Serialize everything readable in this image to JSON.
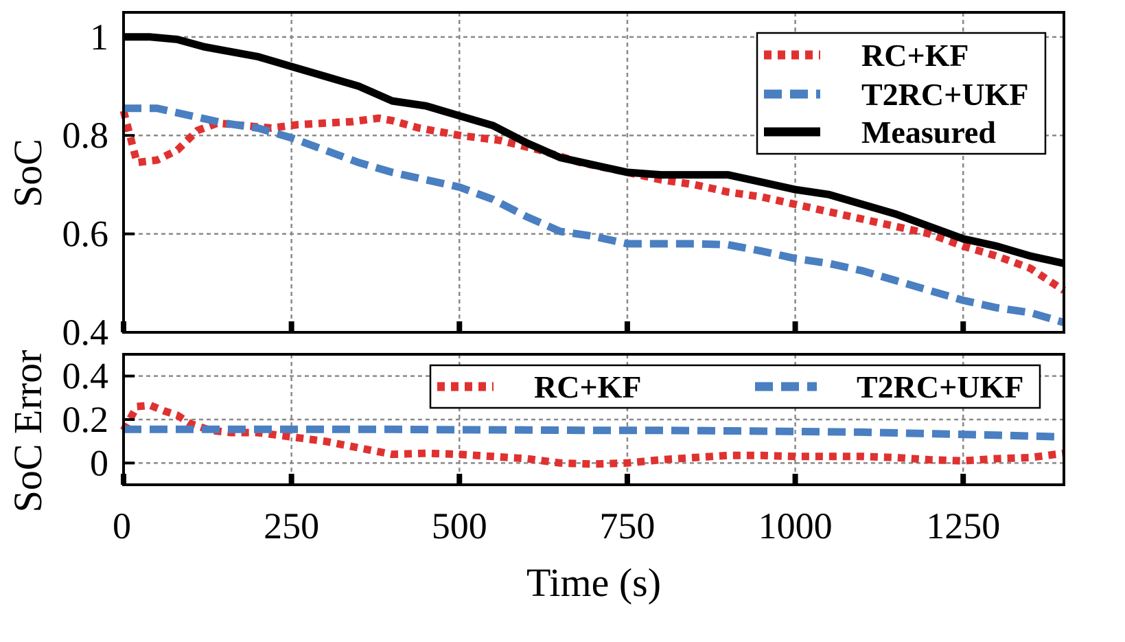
{
  "chart_data": [
    {
      "type": "line",
      "ylabel": "SoC",
      "xlim": [
        0,
        1400
      ],
      "ylim": [
        0.4,
        1.05
      ],
      "yticks": [
        0.4,
        0.6,
        0.8,
        1
      ],
      "ytick_labels": [
        "0.4",
        "0.6",
        "0.8",
        "1"
      ],
      "xticks": [
        0,
        250,
        500,
        750,
        1000,
        1250
      ],
      "grid": true,
      "legend": {
        "position": "top-right",
        "layout": "vertical"
      },
      "series": [
        {
          "name": "RC+KF",
          "color": "#e03131",
          "style": "dotted",
          "x": [
            0,
            20,
            50,
            80,
            110,
            140,
            180,
            220,
            260,
            300,
            340,
            380,
            400,
            440,
            500,
            560,
            620,
            680,
            750,
            800,
            850,
            900,
            950,
            1000,
            1050,
            1100,
            1150,
            1200,
            1250,
            1300,
            1350,
            1400
          ],
          "y": [
            0.85,
            0.745,
            0.75,
            0.77,
            0.81,
            0.825,
            0.82,
            0.815,
            0.822,
            0.825,
            0.828,
            0.835,
            0.83,
            0.815,
            0.8,
            0.79,
            0.77,
            0.745,
            0.725,
            0.71,
            0.7,
            0.685,
            0.675,
            0.66,
            0.645,
            0.63,
            0.615,
            0.6,
            0.575,
            0.555,
            0.53,
            0.485
          ]
        },
        {
          "name": "T2RC+UKF",
          "color": "#4a7fc1",
          "style": "dashed",
          "x": [
            0,
            50,
            100,
            150,
            200,
            250,
            300,
            350,
            400,
            450,
            500,
            550,
            600,
            650,
            700,
            750,
            800,
            850,
            900,
            950,
            1000,
            1050,
            1100,
            1150,
            1200,
            1250,
            1300,
            1350,
            1400
          ],
          "y": [
            0.855,
            0.855,
            0.84,
            0.825,
            0.815,
            0.795,
            0.77,
            0.745,
            0.725,
            0.71,
            0.695,
            0.67,
            0.635,
            0.605,
            0.595,
            0.58,
            0.58,
            0.58,
            0.578,
            0.565,
            0.55,
            0.54,
            0.525,
            0.505,
            0.485,
            0.465,
            0.45,
            0.44,
            0.42
          ]
        },
        {
          "name": "Measured",
          "color": "#000000",
          "style": "solid",
          "x": [
            0,
            40,
            80,
            120,
            160,
            200,
            250,
            300,
            350,
            400,
            450,
            500,
            550,
            600,
            650,
            700,
            750,
            800,
            850,
            900,
            950,
            1000,
            1050,
            1100,
            1150,
            1200,
            1250,
            1300,
            1350,
            1400
          ],
          "y": [
            1.0,
            1.0,
            0.995,
            0.98,
            0.97,
            0.96,
            0.94,
            0.92,
            0.9,
            0.87,
            0.86,
            0.84,
            0.82,
            0.785,
            0.755,
            0.74,
            0.725,
            0.72,
            0.72,
            0.72,
            0.705,
            0.69,
            0.68,
            0.66,
            0.64,
            0.615,
            0.59,
            0.575,
            0.555,
            0.54
          ]
        }
      ]
    },
    {
      "type": "line",
      "xlabel": "Time (s)",
      "ylabel": "SoC Error",
      "xlim": [
        0,
        1400
      ],
      "ylim": [
        -0.1,
        0.5
      ],
      "yticks": [
        0,
        0.2,
        0.4
      ],
      "ytick_labels": [
        "0",
        "0.2",
        "0.4"
      ],
      "xticks": [
        0,
        250,
        500,
        750,
        1000,
        1250
      ],
      "xtick_labels": [
        "0",
        "250",
        "500",
        "750",
        "1000",
        "1250"
      ],
      "grid": true,
      "legend": {
        "position": "top-right",
        "layout": "horizontal"
      },
      "series": [
        {
          "name": "RC+KF",
          "color": "#e03131",
          "style": "dotted",
          "x": [
            0,
            20,
            40,
            60,
            80,
            100,
            130,
            160,
            200,
            250,
            300,
            350,
            400,
            450,
            500,
            550,
            600,
            650,
            700,
            750,
            800,
            850,
            900,
            950,
            1000,
            1050,
            1100,
            1150,
            1200,
            1250,
            1300,
            1350,
            1400
          ],
          "y": [
            0.15,
            0.26,
            0.265,
            0.24,
            0.22,
            0.18,
            0.15,
            0.14,
            0.14,
            0.12,
            0.1,
            0.07,
            0.04,
            0.045,
            0.04,
            0.03,
            0.02,
            0.0,
            -0.005,
            0.0,
            0.015,
            0.025,
            0.035,
            0.035,
            0.03,
            0.03,
            0.03,
            0.025,
            0.015,
            0.01,
            0.02,
            0.025,
            0.045
          ]
        },
        {
          "name": "T2RC+UKF",
          "color": "#4a7fc1",
          "style": "dashed",
          "x": [
            0,
            100,
            200,
            300,
            400,
            500,
            600,
            700,
            800,
            900,
            1000,
            1100,
            1200,
            1300,
            1400
          ],
          "y": [
            0.155,
            0.155,
            0.155,
            0.155,
            0.155,
            0.153,
            0.152,
            0.15,
            0.15,
            0.148,
            0.145,
            0.142,
            0.135,
            0.128,
            0.12
          ]
        }
      ]
    }
  ]
}
